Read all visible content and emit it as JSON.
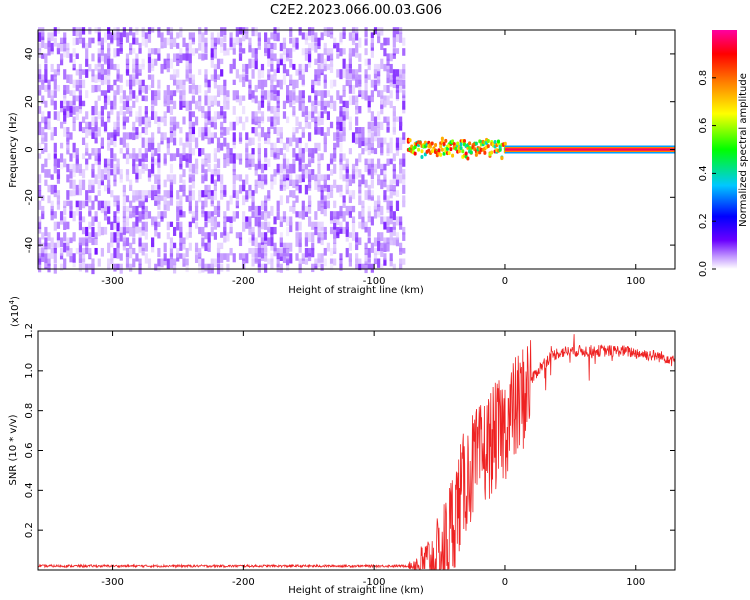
{
  "title": "C2E2.2023.066.00.03.G06",
  "chart_data": [
    {
      "type": "heatmap",
      "xlabel": "Height of straight line (km)",
      "ylabel": "Frequency (Hz)",
      "xlim": [
        -357,
        130
      ],
      "ylim": [
        -50,
        50
      ],
      "x_ticks": [
        -300,
        -200,
        -100,
        0,
        100
      ],
      "x_tick_labels": [
        "-300",
        "-200",
        "-100",
        "0",
        "100"
      ],
      "y_ticks": [
        40,
        20,
        0,
        -20,
        -40
      ],
      "y_tick_labels": [
        "40",
        "20",
        "0",
        "-20",
        "-40"
      ],
      "colorbar": {
        "label": "Normalized spectral amplitude",
        "range": [
          0,
          1
        ],
        "ticks": [
          0.0,
          0.2,
          0.4,
          0.6,
          0.8
        ],
        "tick_labels": [
          "0.0",
          "0.2",
          "0.4",
          "0.6",
          "0.8"
        ],
        "colormap": [
          "#ffffff",
          "#6a00ff",
          "#0000ff",
          "#00c8ff",
          "#00ff00",
          "#ffff00",
          "#ff8000",
          "#ff0000",
          "#ff00a0"
        ]
      },
      "regions": [
        {
          "x_range": [
            -357,
            -78
          ],
          "freq_range": [
            -50,
            50
          ],
          "amplitude_range": [
            0.02,
            0.12
          ],
          "description": "noise"
        },
        {
          "x_range": [
            -75,
            0
          ],
          "freq_center": 0,
          "freq_halfwidth": 3,
          "amplitude_range": [
            0.4,
            0.9
          ]
        },
        {
          "x_range": [
            0,
            130
          ],
          "freq_center": 0,
          "freq_halfwidth": 1,
          "amplitude_range": [
            0.9,
            1.0
          ]
        }
      ],
      "grid": false
    },
    {
      "type": "line",
      "xlabel": "Height of straight line (km)",
      "ylabel": "SNR (10 * v/v)",
      "y_multiplier": "(x10",
      "y_multiplier_exp": "4",
      "y_multiplier_close": ")",
      "xlim": [
        -357,
        130
      ],
      "ylim": [
        0,
        1.2
      ],
      "x_ticks": [
        -300,
        -200,
        -100,
        0,
        100
      ],
      "x_tick_labels": [
        "-300",
        "-200",
        "-100",
        "0",
        "100"
      ],
      "y_ticks": [
        0.2,
        0.4,
        0.6,
        0.8,
        1.0,
        1.2
      ],
      "y_tick_labels": [
        "0.2",
        "0.4",
        "0.6",
        "0.8",
        "1.0",
        "1.2"
      ],
      "color": "#ee2222",
      "grid": false,
      "series": [
        {
          "x": [
            -357,
            -300,
            -250,
            -200,
            -150,
            -100,
            -75,
            -60,
            -50,
            -45,
            -40,
            -35,
            -30,
            -25,
            -20,
            -15,
            -10,
            -5,
            0,
            5,
            10,
            15,
            20,
            25,
            30,
            35,
            40,
            50,
            60,
            70,
            80,
            90,
            100,
            110,
            120,
            130
          ],
          "y": [
            0.02,
            0.02,
            0.02,
            0.02,
            0.02,
            0.02,
            0.02,
            0.03,
            0.05,
            0.12,
            0.25,
            0.35,
            0.45,
            0.52,
            0.55,
            0.6,
            0.65,
            0.68,
            0.72,
            0.78,
            0.82,
            0.88,
            0.95,
            1.0,
            1.04,
            1.07,
            1.09,
            1.1,
            1.1,
            1.1,
            1.1,
            1.1,
            1.09,
            1.08,
            1.07,
            1.06
          ]
        }
      ]
    }
  ]
}
